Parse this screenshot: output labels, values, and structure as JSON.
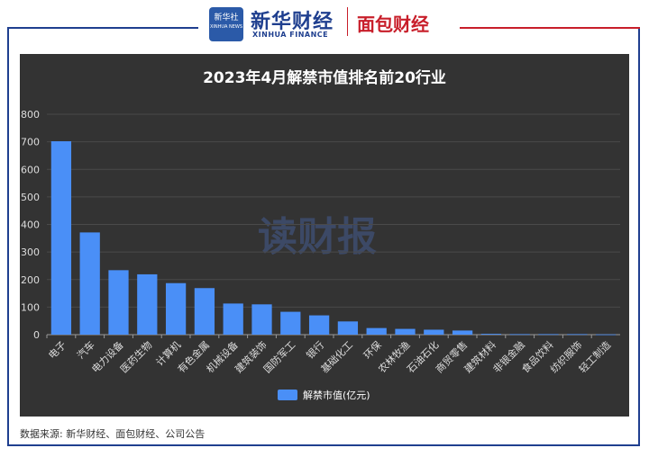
{
  "header": {
    "xinhua_logo_text": "新华社",
    "xinhua_logo_sub": "XINHUA NEWS",
    "brand_cn": "新华财经",
    "brand_en": "XINHUA FINANCE",
    "partner": "面包财经"
  },
  "watermark": "读财报",
  "source": "数据来源: 新华财经、面包财经、公司公告",
  "colors": {
    "bar": "#4a8ff7",
    "bg": "#333333",
    "frame_blue": "#1f3f8f",
    "frame_red": "#c81e2a"
  },
  "chart_data": {
    "type": "bar",
    "title": "2023年4月解禁市值排名前20行业",
    "categories": [
      "电子",
      "汽车",
      "电力设备",
      "医药生物",
      "计算机",
      "有色金属",
      "机械设备",
      "建筑装饰",
      "国防军工",
      "银行",
      "基础化工",
      "环保",
      "农林牧渔",
      "石油石化",
      "商贸零售",
      "建筑材料",
      "非银金融",
      "食品饮料",
      "纺织服饰",
      "轻工制造"
    ],
    "series": [
      {
        "name": "解禁市值(亿元)",
        "values": [
          702,
          371,
          234,
          219,
          187,
          169,
          113,
          110,
          83,
          70,
          48,
          24,
          21,
          18,
          15,
          3,
          2,
          2,
          2,
          1
        ]
      }
    ],
    "yticks": [
      0,
      100,
      200,
      300,
      400,
      500,
      600,
      700,
      800
    ],
    "ylim": [
      0,
      800
    ],
    "grid": true,
    "legend": "bottom"
  }
}
